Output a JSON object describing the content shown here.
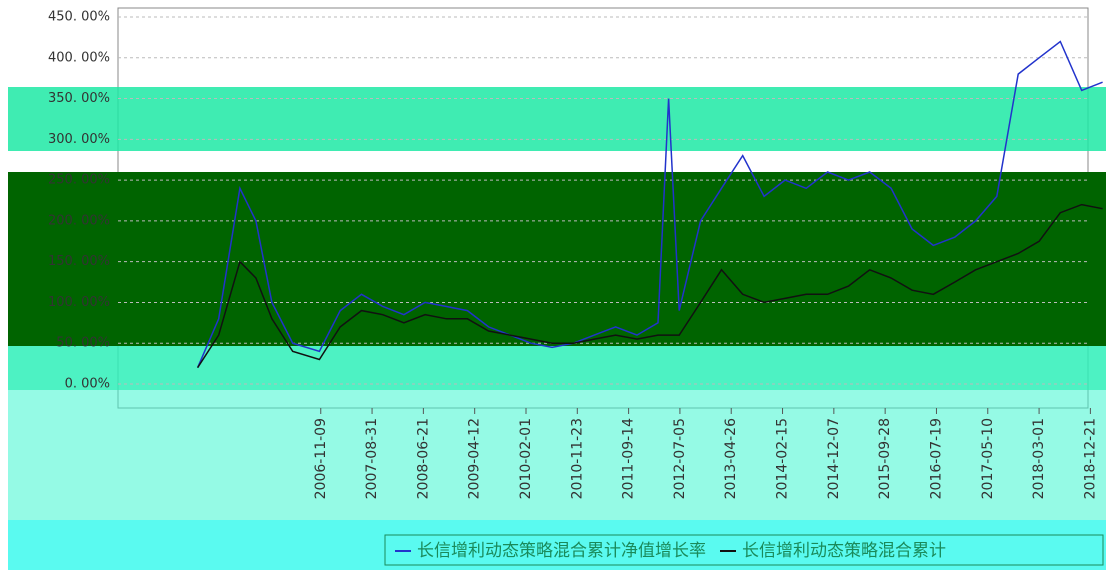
{
  "chart_data": {
    "type": "line",
    "x": [
      "2004-12-01",
      "2005-04-01",
      "2005-08-01",
      "2005-11-01",
      "2006-02-01",
      "2006-06-01",
      "2006-11-01",
      "2007-03-01",
      "2007-07-01",
      "2007-11-01",
      "2008-03-01",
      "2008-07-01",
      "2008-11-01",
      "2009-03-01",
      "2009-07-01",
      "2009-11-01",
      "2010-03-01",
      "2010-07-01",
      "2010-11-01",
      "2011-03-01",
      "2011-07-01",
      "2011-11-01",
      "2012-03-01",
      "2012-05-01",
      "2012-07-01",
      "2012-11-01",
      "2013-03-01",
      "2013-07-01",
      "2013-11-01",
      "2014-03-01",
      "2014-07-01",
      "2014-11-01",
      "2015-03-01",
      "2015-07-01",
      "2015-11-01",
      "2016-03-01",
      "2016-07-01",
      "2016-11-01",
      "2017-03-01",
      "2017-07-01",
      "2017-11-01",
      "2018-03-01",
      "2018-07-01",
      "2018-11-01",
      "2019-03-01"
    ],
    "series": [
      {
        "name": "长信增利动态策略混合累计净值增长率",
        "color": "#2233cc",
        "values": [
          20,
          80,
          240,
          200,
          100,
          50,
          40,
          90,
          110,
          95,
          85,
          100,
          95,
          90,
          70,
          60,
          50,
          45,
          50,
          60,
          70,
          60,
          75,
          350,
          90,
          200,
          240,
          280,
          230,
          250,
          240,
          260,
          250,
          260,
          240,
          190,
          170,
          180,
          200,
          230,
          380,
          400,
          420,
          360,
          370
        ]
      },
      {
        "name": "长信增利动态策略混合累计",
        "color": "#111111",
        "values": [
          20,
          60,
          150,
          130,
          80,
          40,
          30,
          70,
          90,
          85,
          75,
          85,
          80,
          80,
          65,
          60,
          55,
          50,
          50,
          55,
          60,
          55,
          60,
          60,
          60,
          100,
          140,
          110,
          100,
          105,
          110,
          110,
          120,
          140,
          130,
          115,
          110,
          125,
          140,
          150,
          160,
          175,
          210,
          220,
          215
        ]
      }
    ],
    "xlim": [
      "2004-11-16",
      "2019-03-15"
    ],
    "xticks": [
      "2006-11-09",
      "2007-08-31",
      "2008-06-21",
      "2009-04-12",
      "2010-02-01",
      "2010-11-23",
      "2011-09-14",
      "2012-07-05",
      "2013-04-26",
      "2014-02-15",
      "2014-12-07",
      "2015-09-28",
      "2016-07-19",
      "2017-05-10",
      "2018-03-01",
      "2018-12-21"
    ],
    "ylim": [
      0,
      450
    ],
    "yticks": [
      {
        "value": 0,
        "label": "0. 00%"
      },
      {
        "value": 50,
        "label": "50. 00%"
      },
      {
        "value": 100,
        "label": "100. 00%"
      },
      {
        "value": 150,
        "label": "150. 00%"
      },
      {
        "value": 200,
        "label": "200. 00%"
      },
      {
        "value": 250,
        "label": "250. 00%"
      },
      {
        "value": 300,
        "label": "300. 00%"
      },
      {
        "value": 350,
        "label": "350. 00%"
      },
      {
        "value": 400,
        "label": "400. 00%"
      },
      {
        "value": 450,
        "label": "450. 00%"
      }
    ],
    "grid": true
  }
}
